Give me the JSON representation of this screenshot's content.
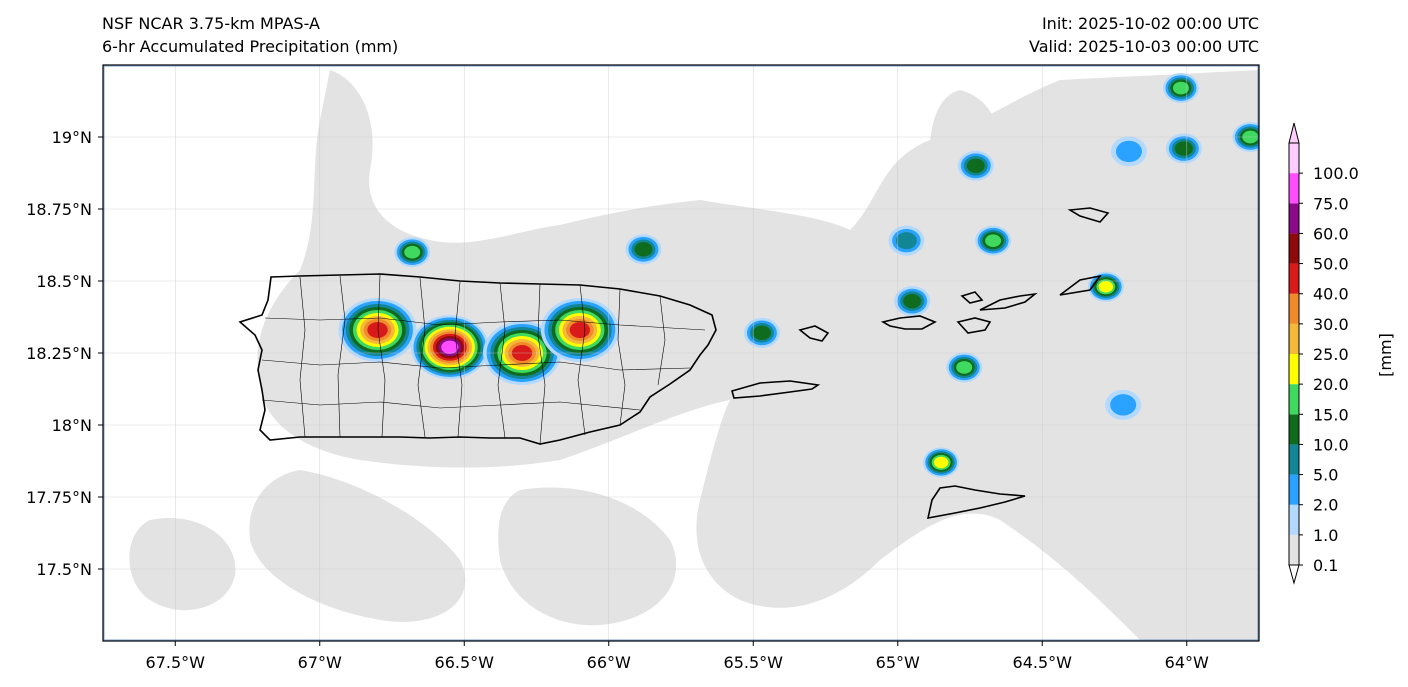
{
  "title": {
    "left_line1": "NSF NCAR 3.75-km MPAS-A",
    "left_line2": "6-hr Accumulated Precipitation (mm)",
    "right_line1": "Init: 2025-10-02 00:00 UTC",
    "right_line2": "Valid: 2025-10-03 00:00 UTC"
  },
  "extent": {
    "lon": [
      -67.75,
      -63.75
    ],
    "lat": [
      17.25,
      19.25
    ]
  },
  "axes": {
    "lon_ticks": [
      {
        "value": -67.5,
        "label": "67.5°W"
      },
      {
        "value": -67.0,
        "label": "67°W"
      },
      {
        "value": -66.5,
        "label": "66.5°W"
      },
      {
        "value": -66.0,
        "label": "66°W"
      },
      {
        "value": -65.5,
        "label": "65.5°W"
      },
      {
        "value": -65.0,
        "label": "65°W"
      },
      {
        "value": -64.5,
        "label": "64.5°W"
      },
      {
        "value": -64.0,
        "label": "64°W"
      }
    ],
    "lat_ticks": [
      {
        "value": 19.0,
        "label": "19°N"
      },
      {
        "value": 18.75,
        "label": "18.75°N"
      },
      {
        "value": 18.5,
        "label": "18.5°N"
      },
      {
        "value": 18.25,
        "label": "18.25°N"
      },
      {
        "value": 18.0,
        "label": "18°N"
      },
      {
        "value": 17.75,
        "label": "17.75°N"
      },
      {
        "value": 17.5,
        "label": "17.5°N"
      }
    ],
    "grid": true
  },
  "colorbar": {
    "units_label": "[mm]",
    "levels": [
      {
        "label": "0.1",
        "color": "#e3e3e3"
      },
      {
        "label": "1.0",
        "color": "#b3d9ff"
      },
      {
        "label": "2.0",
        "color": "#29a3ff"
      },
      {
        "label": "5.0",
        "color": "#128694"
      },
      {
        "label": "10.0",
        "color": "#0f6b1e"
      },
      {
        "label": "15.0",
        "color": "#40d960"
      },
      {
        "label": "20.0",
        "color": "#ffff00"
      },
      {
        "label": "25.0",
        "color": "#f5b93a"
      },
      {
        "label": "30.0",
        "color": "#f08a2a"
      },
      {
        "label": "40.0",
        "color": "#d91a1a"
      },
      {
        "label": "50.0",
        "color": "#8f0a0a"
      },
      {
        "label": "60.0",
        "color": "#8a0a8a"
      },
      {
        "label": "75.0",
        "color": "#ff4dff"
      },
      {
        "label": "100.0",
        "color": "#ffccff"
      }
    ]
  },
  "precip_cells": [
    {
      "lon": -66.8,
      "lat": 18.33,
      "peak": 40.0
    },
    {
      "lon": -66.55,
      "lat": 18.27,
      "peak": 75.0
    },
    {
      "lon": -66.3,
      "lat": 18.25,
      "peak": 40.0
    },
    {
      "lon": -66.1,
      "lat": 18.33,
      "peak": 40.0
    },
    {
      "lon": -66.68,
      "lat": 18.6,
      "peak": 15.0
    },
    {
      "lon": -65.88,
      "lat": 18.61,
      "peak": 10.0
    },
    {
      "lon": -65.47,
      "lat": 18.32,
      "peak": 10.0
    },
    {
      "lon": -64.97,
      "lat": 18.64,
      "peak": 5.0
    },
    {
      "lon": -64.95,
      "lat": 18.43,
      "peak": 10.0
    },
    {
      "lon": -64.67,
      "lat": 18.64,
      "peak": 15.0
    },
    {
      "lon": -64.73,
      "lat": 18.9,
      "peak": 10.0
    },
    {
      "lon": -64.77,
      "lat": 18.2,
      "peak": 15.0
    },
    {
      "lon": -64.85,
      "lat": 17.87,
      "peak": 20.0
    },
    {
      "lon": -64.28,
      "lat": 18.48,
      "peak": 20.0
    },
    {
      "lon": -64.02,
      "lat": 19.17,
      "peak": 15.0
    },
    {
      "lon": -64.01,
      "lat": 18.96,
      "peak": 10.0
    },
    {
      "lon": -63.78,
      "lat": 19.0,
      "peak": 15.0
    },
    {
      "lon": -64.22,
      "lat": 18.07,
      "peak": 2.0
    },
    {
      "lon": -64.2,
      "lat": 18.95,
      "peak": 2.0
    }
  ]
}
